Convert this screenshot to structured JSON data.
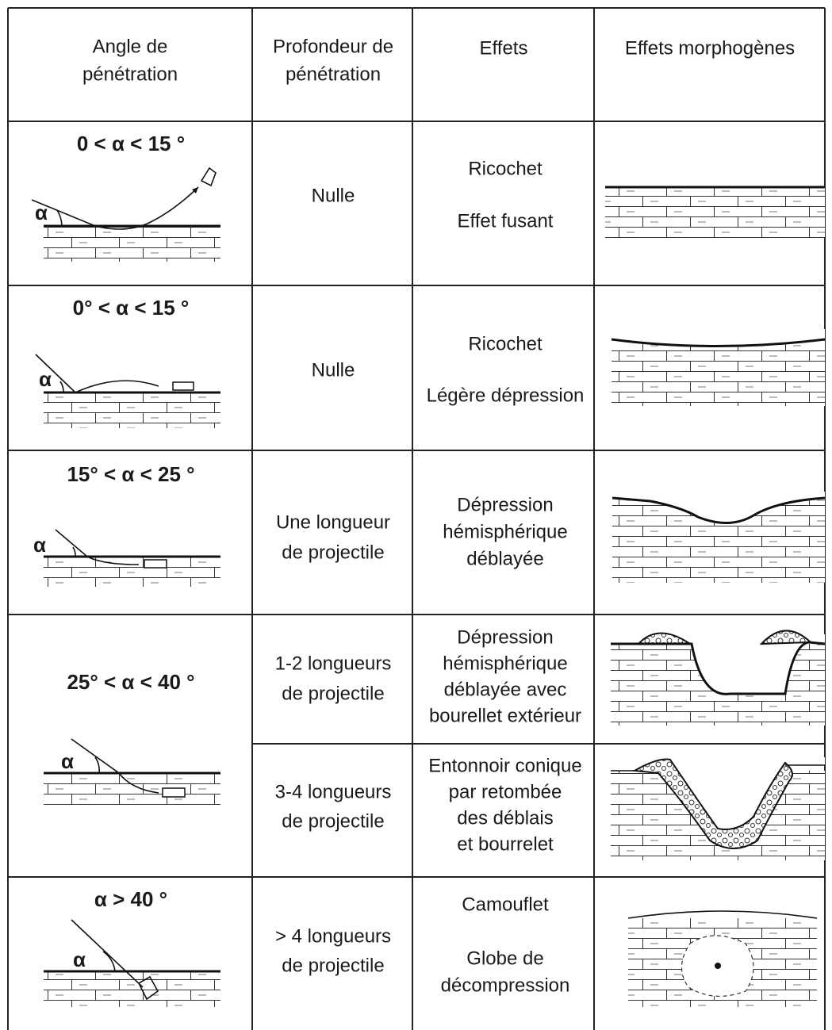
{
  "header": [
    [
      "Angle de",
      "pénétration"
    ],
    [
      "Profondeur de",
      "pénétration"
    ],
    [
      "Effets"
    ],
    [
      "Effets morphogènes"
    ]
  ],
  "rows": [
    {
      "angle": "0 < α < 15 °",
      "symbol": "α",
      "depth": [
        "Nulle"
      ],
      "effects": [
        "Ricochet",
        "Effet fusant"
      ]
    },
    {
      "angle": "0° < α < 15 °",
      "symbol": "α",
      "depth": [
        "Nulle"
      ],
      "effects": [
        "Ricochet",
        "Légère dépression"
      ]
    },
    {
      "angle": "15° < α < 25 °",
      "symbol": "α",
      "depth": [
        "Une longueur",
        "de projectile"
      ],
      "effects": [
        "Dépression",
        "hémisphérique",
        "déblayée"
      ]
    },
    {
      "angle": "25° < α < 40 °",
      "depth": [
        "1-2 longueurs",
        "de projectile"
      ],
      "effects": [
        "Dépression",
        "hémisphérique",
        "déblayée avec",
        "bourellet extérieur"
      ]
    },
    {
      "symbol": "α",
      "depth": [
        "3-4 longueurs",
        "de projectile"
      ],
      "effects": [
        "Entonnoir conique",
        "par retombée",
        "des déblais",
        "et bourrelet"
      ]
    },
    {
      "angle": "α > 40 °",
      "symbol": "α",
      "depth": [
        "> 4 longueurs",
        "de projectile"
      ],
      "effects": [
        "Camouflet",
        "Globe de",
        "décompression"
      ]
    }
  ]
}
